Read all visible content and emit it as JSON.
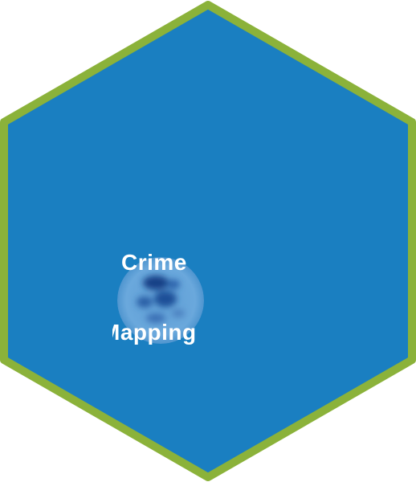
{
  "tile": {
    "label_line1": "Crime",
    "label_line2": "Mapping",
    "fill_color": "#1a7fc1",
    "border_color": "#8bb23a",
    "badge_icon": "blurred-map-icon"
  }
}
